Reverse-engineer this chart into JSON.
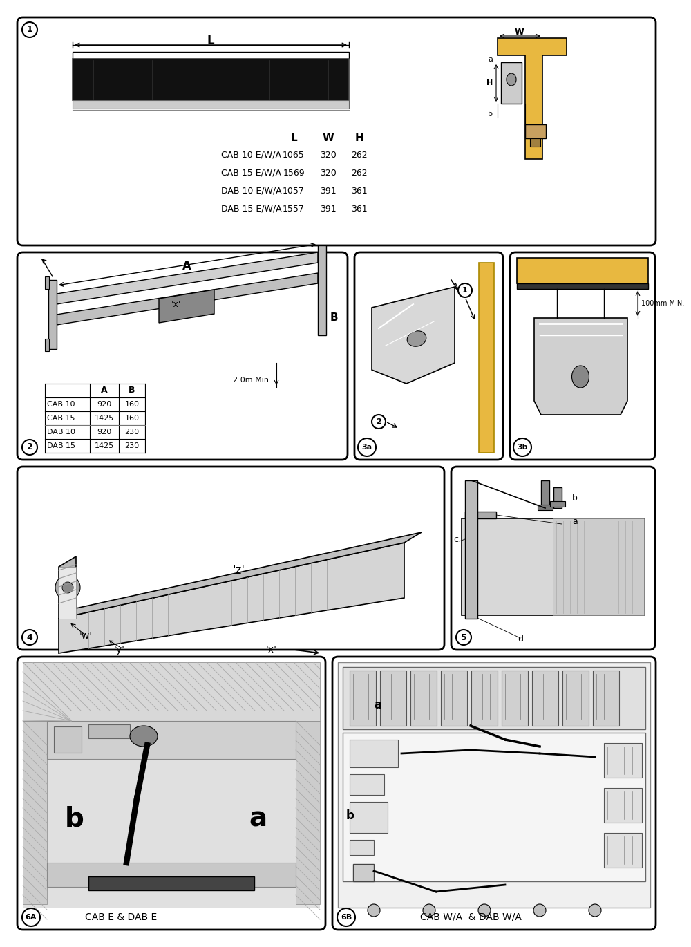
{
  "bg": "#ffffff",
  "yellow": "#e8b840",
  "gray1": "#c8c8c8",
  "gray2": "#a8a8a8",
  "gray3": "#e0e0e0",
  "black": "#000000",
  "table1": {
    "rows": [
      [
        "CAB 10 E/W/A",
        "1065",
        "320",
        "262"
      ],
      [
        "CAB 15 E/W/A",
        "1569",
        "320",
        "262"
      ],
      [
        "DAB 10 E/W/A",
        "1057",
        "391",
        "361"
      ],
      [
        "DAB 15 E/W/A",
        "1557",
        "391",
        "361"
      ]
    ]
  },
  "table2": {
    "rows": [
      [
        "CAB 10",
        "920",
        "160"
      ],
      [
        "CAB 15",
        "1425",
        "160"
      ],
      [
        "DAB 10",
        "920",
        "230"
      ],
      [
        "DAB 15",
        "1425",
        "230"
      ]
    ]
  },
  "p6a_label": "CAB E & DAB E",
  "p6b_label": "CAB W/A  & DAB W/A",
  "dim_note": "2.0m Min.",
  "clearance": "100mm MIN."
}
